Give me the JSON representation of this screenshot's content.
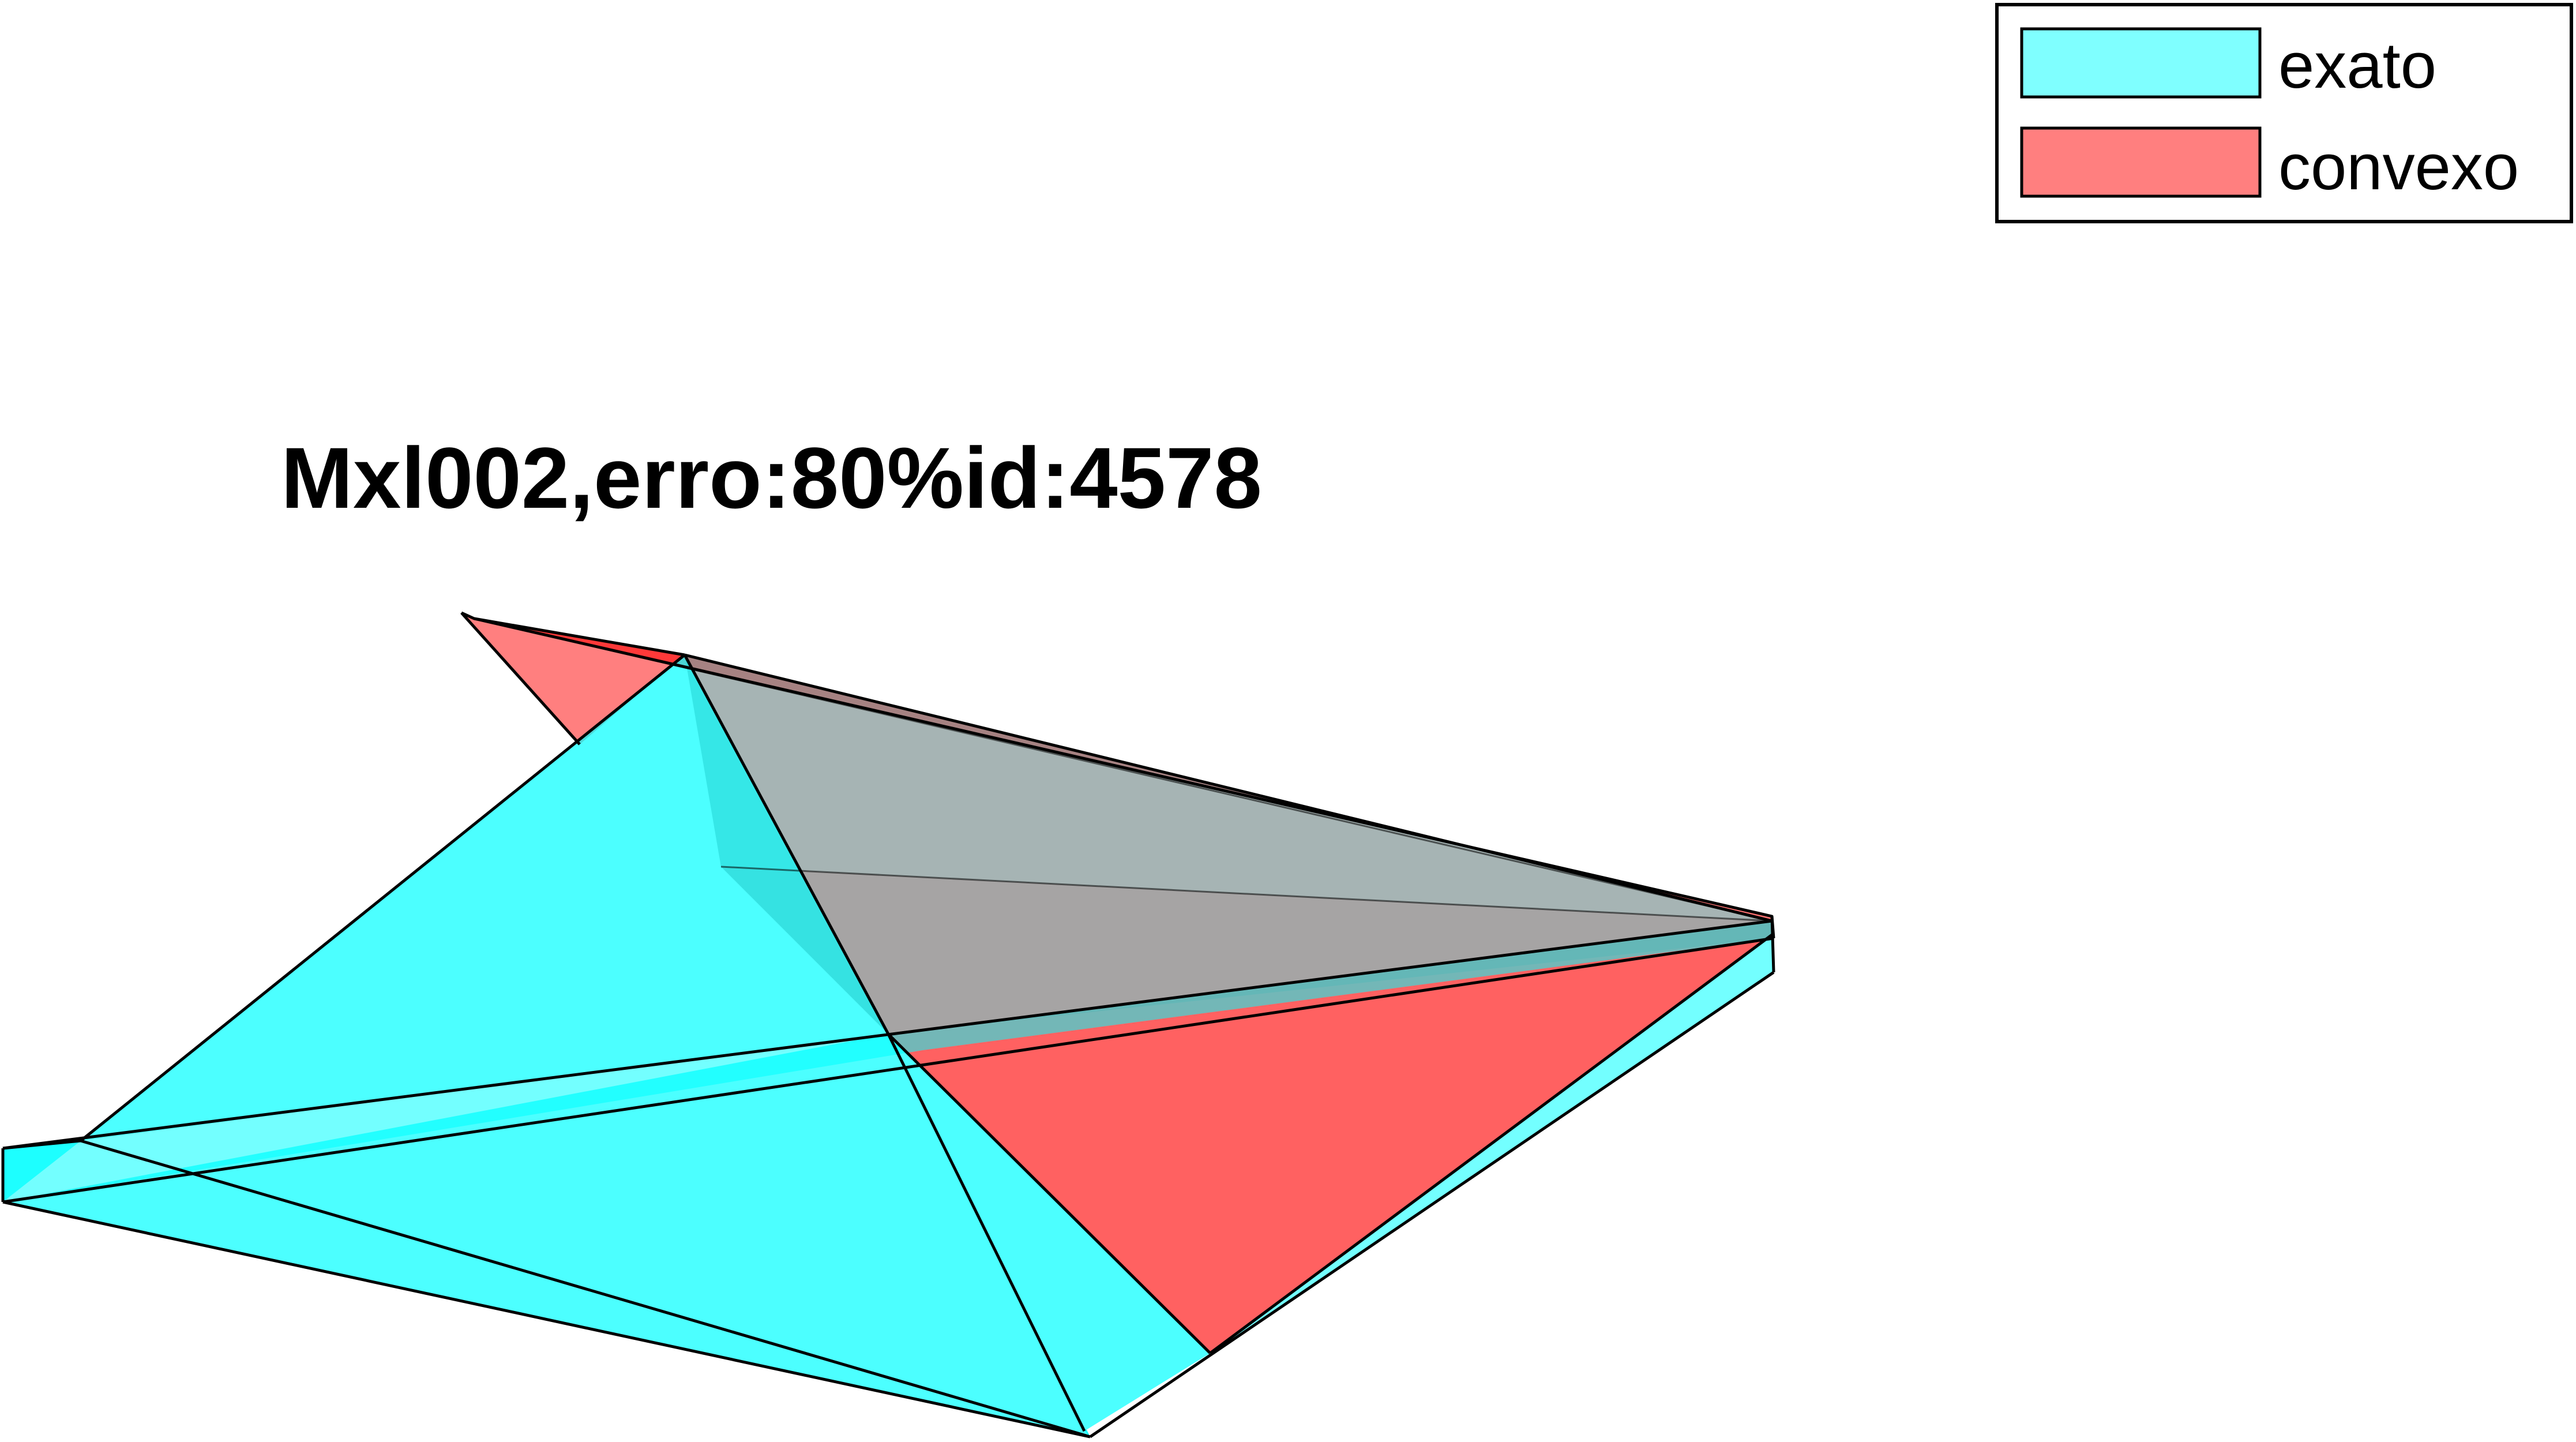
{
  "title": "Mxl002,erro:80%id:4578",
  "legend": {
    "items": [
      {
        "label": "exato",
        "color": "#00ffff"
      },
      {
        "label": "convexo",
        "color": "#ff0000"
      }
    ]
  },
  "colors": {
    "exato_fill": "#00ffff",
    "convexo_fill": "#ff0000",
    "edge": "#000000",
    "background": "#ffffff"
  }
}
